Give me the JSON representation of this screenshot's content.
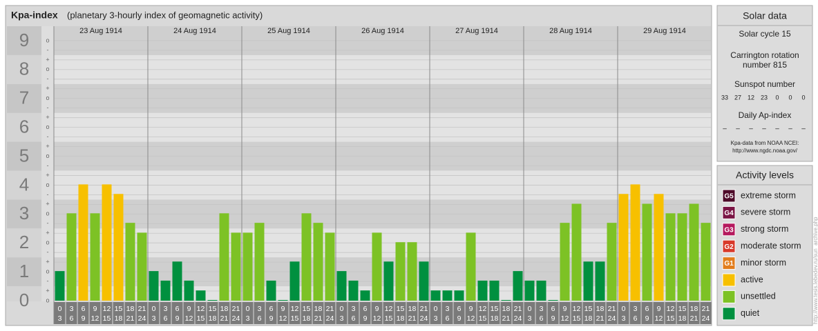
{
  "chart_data": {
    "type": "bar",
    "title": "Kpa-index",
    "subtitle": "(planetary 3-hourly index of geomagnetic activity)",
    "ylim": [
      0,
      9.5
    ],
    "yticks": [
      0,
      1,
      2,
      3,
      4,
      5,
      6,
      7,
      8,
      9
    ],
    "minor_labels": [
      "o",
      "+",
      "-"
    ],
    "hours_start": [
      "0",
      "3",
      "6",
      "9",
      "12",
      "15",
      "18",
      "21"
    ],
    "hours_end": [
      "3",
      "6",
      "9",
      "12",
      "15",
      "18",
      "21",
      "24"
    ],
    "days": [
      {
        "label": "23 Aug 1914",
        "values": [
          1,
          3,
          4,
          3,
          4,
          3.67,
          2.67,
          2.33
        ],
        "colors": [
          "#00903f",
          "#7dc225",
          "#f7c000",
          "#7dc225",
          "#f7c000",
          "#f7c000",
          "#7dc225",
          "#7dc225"
        ]
      },
      {
        "label": "24 Aug 1914",
        "values": [
          1,
          0.67,
          1.33,
          0.67,
          0.33,
          0,
          3,
          2.33
        ],
        "colors": [
          "#00903f",
          "#00903f",
          "#00903f",
          "#00903f",
          "#00903f",
          "#00903f",
          "#7dc225",
          "#7dc225"
        ]
      },
      {
        "label": "25 Aug 1914",
        "values": [
          2.33,
          2.67,
          0.67,
          0,
          1.33,
          3,
          2.67,
          2.33
        ],
        "colors": [
          "#7dc225",
          "#7dc225",
          "#00903f",
          "#00903f",
          "#00903f",
          "#7dc225",
          "#7dc225",
          "#7dc225"
        ]
      },
      {
        "label": "26 Aug 1914",
        "values": [
          1,
          0.67,
          0.33,
          2.33,
          1.33,
          2,
          2,
          1.33
        ],
        "colors": [
          "#00903f",
          "#00903f",
          "#00903f",
          "#7dc225",
          "#00903f",
          "#7dc225",
          "#7dc225",
          "#00903f"
        ]
      },
      {
        "label": "27 Aug 1914",
        "values": [
          0.33,
          0.33,
          0.33,
          2.33,
          0.67,
          0.67,
          0,
          1
        ],
        "colors": [
          "#00903f",
          "#00903f",
          "#00903f",
          "#7dc225",
          "#00903f",
          "#00903f",
          "#00903f",
          "#00903f"
        ]
      },
      {
        "label": "28 Aug 1914",
        "values": [
          0.67,
          0.67,
          0,
          2.67,
          3.33,
          1.33,
          1.33,
          2.67
        ],
        "colors": [
          "#00903f",
          "#00903f",
          "#00903f",
          "#7dc225",
          "#7dc225",
          "#00903f",
          "#00903f",
          "#7dc225"
        ]
      },
      {
        "label": "29 Aug 1914",
        "values": [
          3.67,
          4,
          3.33,
          3.67,
          3,
          3,
          3.33,
          2.67
        ],
        "colors": [
          "#f7c000",
          "#f7c000",
          "#7dc225",
          "#f7c000",
          "#7dc225",
          "#7dc225",
          "#7dc225",
          "#7dc225"
        ]
      }
    ]
  },
  "solar_data": {
    "title": "Solar data",
    "cycle": "Solar cycle 15",
    "carrington": [
      "Carrington rotation",
      "number 815"
    ],
    "sunspot_title": "Sunspot number",
    "sunspot": [
      33,
      27,
      12,
      23,
      0,
      0,
      0
    ],
    "ap_title": "Daily Ap-index",
    "ap": [
      "–",
      "–",
      "–",
      "–",
      "–",
      "–",
      "–"
    ],
    "source": [
      "Kpa-data from NOAA NCEI:",
      "http://www.ngdc.noaa.gov/"
    ]
  },
  "activity_levels": {
    "title": "Activity levels",
    "items": [
      {
        "badge": "G5",
        "name": "extreme storm",
        "color": "#4d0a28"
      },
      {
        "badge": "G4",
        "name": "severe storm",
        "color": "#7a1444"
      },
      {
        "badge": "G3",
        "name": "strong storm",
        "color": "#b5195e"
      },
      {
        "badge": "G2",
        "name": "moderate storm",
        "color": "#d8392a"
      },
      {
        "badge": "G1",
        "name": "minor storm",
        "color": "#e27d1c"
      },
      {
        "name": "active",
        "color": "#f7c000"
      },
      {
        "name": "unsettled",
        "color": "#7dc225"
      },
      {
        "name": "quiet",
        "color": "#00903f"
      }
    ]
  },
  "watermark": "http://www.tesis.lebedev.ru/sun_archive.php"
}
